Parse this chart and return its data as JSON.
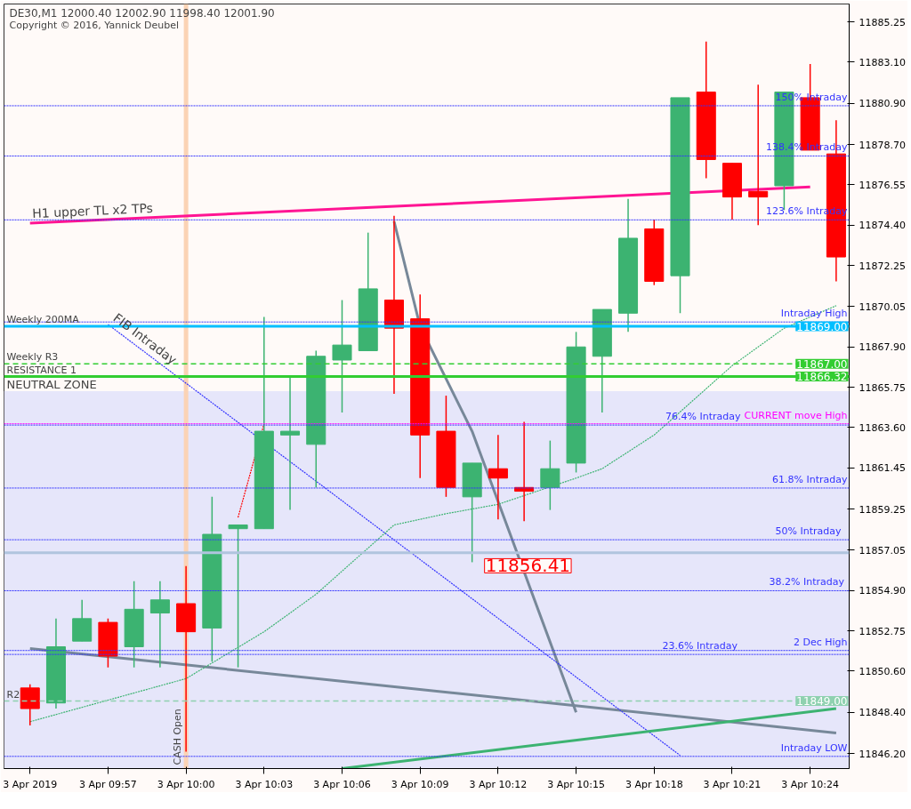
{
  "chart_data": {
    "type": "candlestick",
    "title": "DE30,M1  12000.40 12002.90 11998.40 12001.90",
    "subtitle": "Copyright © 2016, Yannick Deubel",
    "x": [
      "2019-04-03T09:54",
      "2019-04-03T09:55",
      "2019-04-03T09:56",
      "2019-04-03T09:57",
      "2019-04-03T09:58",
      "2019-04-03T09:59",
      "2019-04-03T10:00",
      "2019-04-03T10:01",
      "2019-04-03T10:02",
      "2019-04-03T10:03",
      "2019-04-03T10:04",
      "2019-04-03T10:05",
      "2019-04-03T10:06",
      "2019-04-03T10:07",
      "2019-04-03T10:08",
      "2019-04-03T10:09",
      "2019-04-03T10:10",
      "2019-04-03T10:11",
      "2019-04-03T10:12",
      "2019-04-03T10:13",
      "2019-04-03T10:14",
      "2019-04-03T10:15",
      "2019-04-03T10:16",
      "2019-04-03T10:17",
      "2019-04-03T10:18",
      "2019-04-03T10:19",
      "2019-04-03T10:20",
      "2019-04-03T10:21",
      "2019-04-03T10:22",
      "2019-04-03T10:23",
      "2019-04-03T10:24",
      "2019-04-03T10:25"
    ],
    "ohlc": [
      [
        11849.7,
        11849.9,
        11847.7,
        11848.6
      ],
      [
        11848.9,
        11853.4,
        11848.6,
        11851.9
      ],
      [
        11852.2,
        11854.4,
        11852.2,
        11853.4
      ],
      [
        11853.2,
        11853.4,
        11850.8,
        11851.4
      ],
      [
        11851.9,
        11855.4,
        11850.8,
        11853.9
      ],
      [
        11853.7,
        11855.4,
        11850.8,
        11854.4
      ],
      [
        11854.2,
        11856.2,
        11846.3,
        11852.7
      ],
      [
        11852.9,
        11859.9,
        11851.1,
        11857.9
      ],
      [
        11858.2,
        11858.4,
        11850.8,
        11858.4
      ],
      [
        11858.2,
        11869.5,
        11858.2,
        11863.4
      ],
      [
        11863.2,
        11866.3,
        11859.2,
        11863.4
      ],
      [
        11862.7,
        11867.7,
        11860.4,
        11867.4
      ],
      [
        11867.2,
        11870.4,
        11864.4,
        11868.0
      ],
      [
        11867.7,
        11874.0,
        11867.7,
        11871.0
      ],
      [
        11870.4,
        11874.9,
        11865.4,
        11868.9
      ],
      [
        11869.4,
        11870.7,
        11860.9,
        11863.2
      ],
      [
        11863.4,
        11865.3,
        11859.9,
        11860.4
      ],
      [
        11859.9,
        11861.7,
        11856.41,
        11861.7
      ],
      [
        11861.4,
        11863.2,
        11858.7,
        11860.9
      ],
      [
        11860.4,
        11863.9,
        11858.6,
        11860.2
      ],
      [
        11860.4,
        11862.9,
        11859.2,
        11861.4
      ],
      [
        11861.7,
        11868.7,
        11861.2,
        11867.9
      ],
      [
        11867.4,
        11869.9,
        11864.4,
        11869.9
      ],
      [
        11869.7,
        11875.8,
        11868.7,
        11873.7
      ],
      [
        11874.2,
        11874.7,
        11871.2,
        11871.4
      ],
      [
        11871.7,
        11881.2,
        11869.7,
        11881.2
      ],
      [
        11881.5,
        11884.2,
        11876.9,
        11877.9
      ],
      [
        11877.7,
        11877.7,
        11874.7,
        11875.9
      ],
      [
        11876.2,
        11881.9,
        11874.4,
        11875.9
      ],
      [
        11876.5,
        11881.5,
        11875.2,
        11881.5
      ],
      [
        11881.2,
        11883.0,
        11878.4,
        11878.4
      ],
      [
        11878.2,
        11880.0,
        11871.4,
        11872.7
      ]
    ],
    "colors": [
      "#ff0000",
      "#3cb371",
      "#3cb371",
      "#ff0000",
      "#3cb371",
      "#3cb371",
      "#ff0000",
      "#3cb371",
      "#3cb371",
      "#3cb371",
      "#3cb371",
      "#3cb371",
      "#3cb371",
      "#3cb371",
      "#ff0000",
      "#ff0000",
      "#ff0000",
      "#3cb371",
      "#ff0000",
      "#ff0000",
      "#3cb371",
      "#3cb371",
      "#3cb371",
      "#3cb371",
      "#ff0000",
      "#3cb371",
      "#ff0000",
      "#ff0000",
      "#ff0000",
      "#3cb371",
      "#ff0000",
      "#ff0000"
    ],
    "series": [
      {
        "type": "line",
        "name": "H1 upper TL x2 TPs",
        "color": "#ff1493",
        "line_style": "solid",
        "x": [
          "2019-04-03T09:54",
          "2019-04-03T10:24"
        ],
        "values": [
          11874.5,
          11876.44
        ]
      },
      {
        "type": "line",
        "color": "#778899",
        "line_style": "solid",
        "x": [
          "2019-04-03T09:54",
          "2019-04-03T10:25"
        ],
        "values": [
          11851.8,
          11847.3
        ]
      },
      {
        "type": "line",
        "color": "#778899",
        "line_style": "solid",
        "x": [
          "2019-04-03T10:08",
          "2019-04-03T10:09",
          "2019-04-03T10:11",
          "2019-04-03T10:15"
        ],
        "values": [
          11874.6,
          11869.0,
          11863.4,
          11848.4
        ]
      },
      {
        "type": "line",
        "name": "FIB Intraday",
        "color": "#3333ff",
        "line_style": "dotted",
        "x": [
          "2019-04-03T09:57",
          "2019-04-03T10:19"
        ],
        "values": [
          11869.1,
          11846.1
        ]
      },
      {
        "type": "line",
        "color": "#ff0000",
        "line_style": "dotted",
        "x": [
          "2019-04-03T10:02",
          "2019-04-03T10:03"
        ],
        "values": [
          11858.8,
          11863.8
        ]
      },
      {
        "type": "line",
        "color": "#3cb371",
        "line_style": "dotted",
        "x": [
          "2019-04-03T09:54",
          "2019-04-03T10:00",
          "2019-04-03T10:03",
          "2019-04-03T10:05",
          "2019-04-03T10:08",
          "2019-04-03T10:10",
          "2019-04-03T10:12",
          "2019-04-03T10:15",
          "2019-04-03T10:16",
          "2019-04-03T10:18",
          "2019-04-03T10:21",
          "2019-04-03T10:23",
          "2019-04-03T10:25"
        ],
        "values": [
          11847.9,
          11850.2,
          11852.7,
          11854.7,
          11858.4,
          11859.0,
          11859.5,
          11860.9,
          11861.4,
          11863.2,
          11866.9,
          11868.9,
          11870.1
        ]
      },
      {
        "type": "line",
        "color": "#3cb371",
        "line_style": "solid",
        "x": [
          "2019-04-03T10:06",
          "2019-04-03T10:25"
        ],
        "values": [
          11845.4,
          11848.6
        ]
      }
    ],
    "xlim": [
      "2019-04-03T09:53",
      "2019-04-03T10:25:30"
    ],
    "xticks": [
      {
        "value": "2019-04-03T09:54",
        "label": "3 Apr 2019"
      },
      {
        "value": "2019-04-03T09:57",
        "label": "3 Apr 09:57"
      },
      {
        "value": "2019-04-03T10:00",
        "label": "3 Apr 10:00"
      },
      {
        "value": "2019-04-03T10:03",
        "label": "3 Apr 10:03"
      },
      {
        "value": "2019-04-03T10:06",
        "label": "3 Apr 10:06"
      },
      {
        "value": "2019-04-03T10:09",
        "label": "3 Apr 10:09"
      },
      {
        "value": "2019-04-03T10:12",
        "label": "3 Apr 10:12"
      },
      {
        "value": "2019-04-03T10:15",
        "label": "3 Apr 10:15"
      },
      {
        "value": "2019-04-03T10:18",
        "label": "3 Apr 10:18"
      },
      {
        "value": "2019-04-03T10:21",
        "label": "3 Apr 10:21"
      },
      {
        "value": "2019-04-03T10:24",
        "label": "3 Apr 10:24"
      }
    ],
    "ylim": [
      11845.4,
      11886.2
    ],
    "yticks": [
      {
        "value": 11846.2,
        "label": "11846.20"
      },
      {
        "value": 11848.4,
        "label": "11848.40"
      },
      {
        "value": 11850.6,
        "label": "11850.60"
      },
      11852.75,
      {
        "value": 11854.9,
        "label": "11854.90"
      },
      11857.05,
      11859.25,
      11861.45,
      {
        "value": 11863.6,
        "label": "11863.60"
      },
      11865.75,
      {
        "value": 11867.9,
        "label": "11867.90"
      },
      11870.05,
      11872.25,
      {
        "value": 11874.4,
        "label": "11874.40"
      },
      11876.55,
      {
        "value": 11878.7,
        "label": "11878.70"
      },
      {
        "value": 11880.9,
        "label": "11880.90"
      },
      {
        "value": 11883.1,
        "label": "11883.10"
      },
      11885.25
    ],
    "ref_lines": [
      {
        "axis": "y",
        "value": 11880.77,
        "label": "150% Intraday",
        "color": "#3333ff",
        "line_style": "dotted"
      },
      {
        "axis": "y",
        "value": 11878.09,
        "label": "138.4% Intraday",
        "color": "#3333ff",
        "line_style": "dotted"
      },
      {
        "axis": "y",
        "value": 11874.68,
        "label": "123.6% Intraday",
        "color": "#3333ff",
        "line_style": "dotted"
      },
      {
        "axis": "y",
        "value": 11869.23,
        "label": "Intraday High",
        "color": "#3333ff",
        "line_style": "dotted"
      },
      {
        "axis": "y",
        "value": 11869.0,
        "label": "Weekly 200MA",
        "color": "#00bfff",
        "line_style": "solid"
      },
      {
        "axis": "y",
        "value": 11867.0,
        "label": "Weekly R3",
        "color": "#32cd32",
        "line_style": "dashed"
      },
      {
        "axis": "y",
        "value": 11866.32,
        "label": "RESISTANCE 1",
        "color": "#32cd32",
        "line_style": "solid"
      },
      {
        "axis": "y",
        "value": 11863.8,
        "label": "CURRENT move High",
        "color": "#ff00ff",
        "line_style": "dotted"
      },
      {
        "axis": "y",
        "value": 11863.73,
        "label": "76.4% Intraday",
        "color": "#3333ff",
        "line_style": "dotted"
      },
      {
        "axis": "y",
        "value": 11860.37,
        "label": "61.8% Intraday",
        "color": "#3333ff",
        "line_style": "dotted"
      },
      {
        "axis": "y",
        "value": 11857.61,
        "label": "50%   Intraday",
        "color": "#3333ff",
        "line_style": "dotted"
      },
      {
        "axis": "y",
        "value": 11856.92,
        "color": "#b0c4de",
        "line_style": "solid"
      },
      {
        "axis": "y",
        "value": 11854.89,
        "label": "38.2%  Intraday",
        "color": "#3333ff",
        "line_style": "dotted"
      },
      {
        "axis": "y",
        "value": 11851.7,
        "label": "2 Dec High",
        "color": "#3333ff",
        "line_style": "dotted"
      },
      {
        "axis": "y",
        "value": 11851.49,
        "label": "23.6%  Intraday",
        "color": "#3333ff",
        "line_style": "dotted"
      },
      {
        "axis": "y",
        "value": 11849.0,
        "label": "R2",
        "color": "#8fd1b0",
        "line_style": "dashed"
      },
      {
        "axis": "y",
        "value": 11846.05,
        "label": "Intraday LOW",
        "color": "#3333ff",
        "line_style": "dotted"
      },
      {
        "axis": "x",
        "value": "2019-04-03T10:00",
        "label": "CASH Open",
        "color": "#fbd3b5",
        "line_style": "solid"
      }
    ],
    "bands": [
      {
        "axis": "y",
        "from": 11845.4,
        "to": 11865.54,
        "label": "NEUTRAL ZONE",
        "color": "#e6e6fa"
      }
    ],
    "annotations": [
      {
        "text": "11856.41",
        "x": "2019-04-03T10:11",
        "y": 11856.41
      },
      {
        "text": "11869.00",
        "y": 11869.0
      },
      {
        "text": "11867.00",
        "y": 11867.0
      },
      {
        "text": "11866.32",
        "y": 11866.32
      },
      {
        "text": "11849.00",
        "y": 11849.0
      }
    ]
  }
}
